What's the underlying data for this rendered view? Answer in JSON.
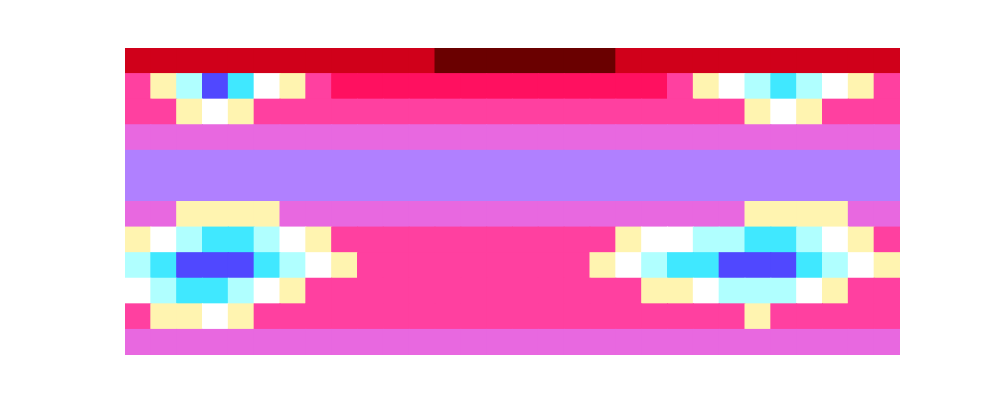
{
  "chart_data": {
    "type": "heatmap",
    "tick_labels": false,
    "color_range": [
      0,
      10
    ],
    "cells": [
      [
        1,
        1,
        1,
        1,
        1,
        1,
        1,
        1,
        1,
        1,
        1,
        1,
        0,
        0,
        0,
        0,
        0,
        0,
        0,
        1,
        1,
        1,
        1,
        1,
        1,
        1,
        1,
        1,
        1,
        1
      ],
      [
        3,
        6,
        8,
        10,
        9,
        7,
        6,
        3,
        2,
        2,
        2,
        2,
        2,
        2,
        2,
        2,
        2,
        2,
        2,
        2,
        2,
        3,
        6,
        7,
        8,
        9,
        8,
        7,
        6,
        3
      ],
      [
        3,
        3,
        6,
        7,
        6,
        3,
        3,
        3,
        3,
        3,
        3,
        3,
        3,
        3,
        3,
        3,
        3,
        3,
        3,
        3,
        3,
        3,
        3,
        3,
        6,
        7,
        6,
        3,
        3,
        3
      ],
      [
        4,
        4,
        4,
        4,
        4,
        4,
        4,
        4,
        4,
        4,
        4,
        4,
        4,
        4,
        4,
        4,
        4,
        4,
        4,
        4,
        4,
        4,
        4,
        4,
        4,
        4,
        4,
        4,
        4,
        4
      ],
      [
        5,
        5,
        5,
        5,
        5,
        5,
        5,
        5,
        5,
        5,
        5,
        5,
        5,
        5,
        5,
        5,
        5,
        5,
        5,
        5,
        5,
        5,
        5,
        5,
        5,
        5,
        5,
        5,
        5,
        5
      ],
      [
        5,
        5,
        5,
        5,
        5,
        5,
        5,
        5,
        5,
        5,
        5,
        5,
        5,
        5,
        5,
        5,
        5,
        5,
        5,
        5,
        5,
        5,
        5,
        5,
        5,
        5,
        5,
        5,
        5,
        5
      ],
      [
        4,
        4,
        6,
        6,
        6,
        6,
        4,
        4,
        4,
        4,
        4,
        4,
        4,
        4,
        4,
        4,
        4,
        4,
        4,
        4,
        4,
        4,
        4,
        4,
        6,
        6,
        6,
        6,
        4,
        4
      ],
      [
        6,
        7,
        8,
        9,
        9,
        8,
        7,
        6,
        3,
        3,
        3,
        3,
        3,
        3,
        3,
        3,
        3,
        3,
        3,
        6,
        7,
        7,
        8,
        8,
        9,
        9,
        8,
        7,
        6,
        3
      ],
      [
        8,
        9,
        10,
        10,
        10,
        9,
        8,
        7,
        6,
        3,
        3,
        3,
        3,
        3,
        3,
        3,
        3,
        3,
        6,
        7,
        8,
        9,
        9,
        10,
        10,
        10,
        9,
        8,
        7,
        6
      ],
      [
        7,
        8,
        9,
        9,
        8,
        7,
        6,
        3,
        3,
        3,
        3,
        3,
        3,
        3,
        3,
        3,
        3,
        3,
        3,
        3,
        6,
        6,
        7,
        8,
        8,
        8,
        7,
        6,
        3,
        3
      ],
      [
        3,
        6,
        6,
        7,
        6,
        3,
        3,
        3,
        3,
        3,
        3,
        3,
        3,
        3,
        3,
        3,
        3,
        3,
        3,
        3,
        3,
        3,
        3,
        3,
        6,
        3,
        3,
        3,
        3,
        3
      ],
      [
        4,
        4,
        4,
        4,
        4,
        4,
        4,
        4,
        4,
        4,
        4,
        4,
        4,
        4,
        4,
        4,
        4,
        4,
        4,
        4,
        4,
        4,
        4,
        4,
        4,
        4,
        4,
        4,
        4,
        4
      ]
    ]
  }
}
